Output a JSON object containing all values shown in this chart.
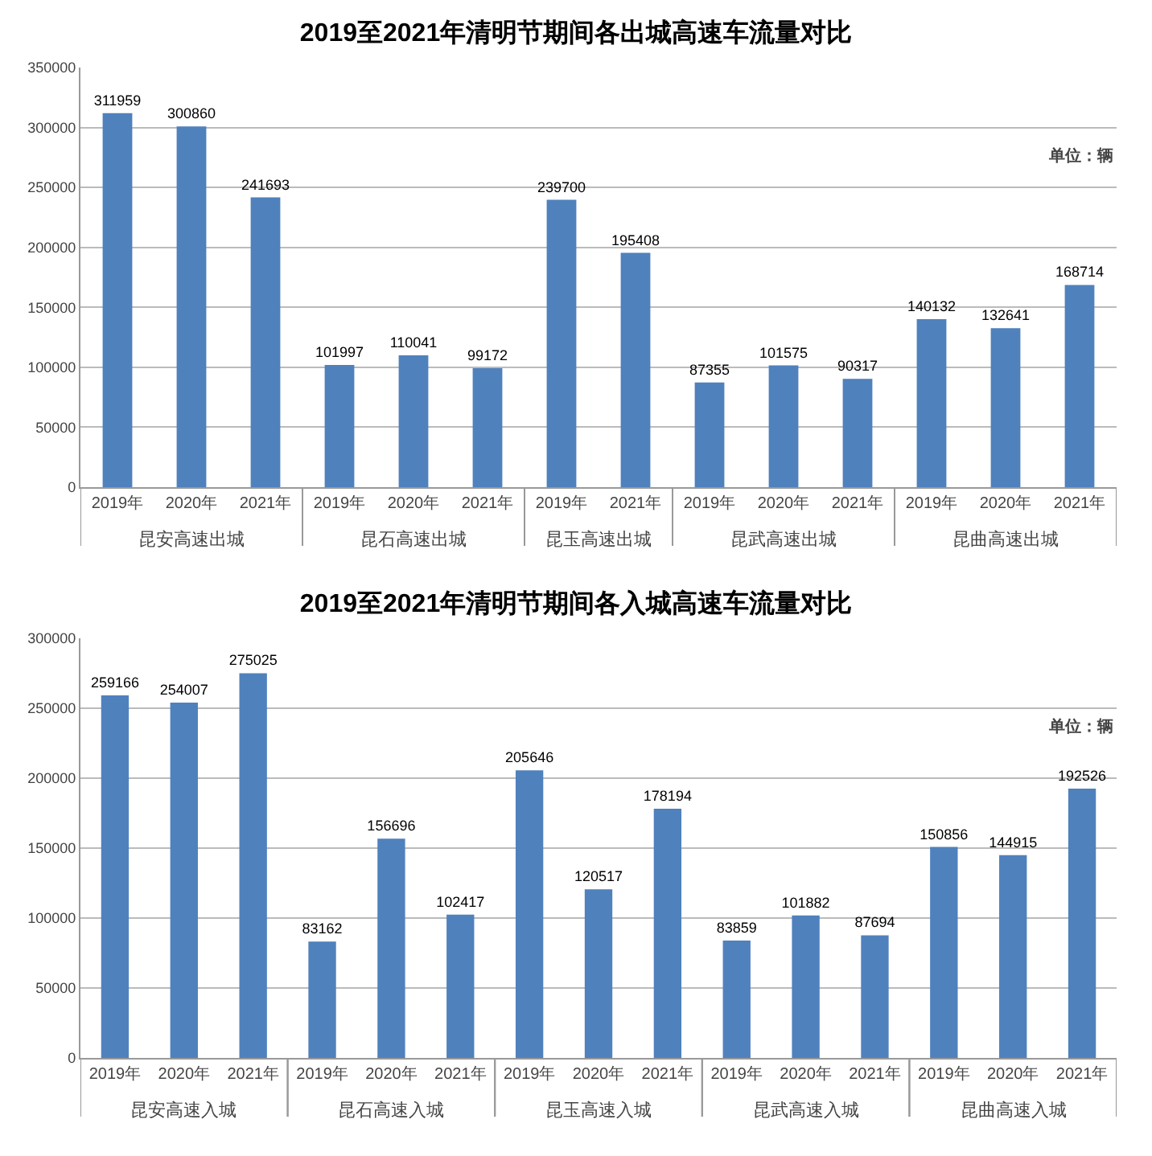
{
  "chart_data": [
    {
      "type": "bar",
      "title": "2019至2021年清明节期间各出城高速车流量对比",
      "annotations": [
        "单位：辆"
      ],
      "categories": [
        "2019年",
        "2020年",
        "2021年",
        "2019年",
        "2020年",
        "2021年",
        "2019年",
        "2021年",
        "2019年",
        "2020年",
        "2021年",
        "2019年",
        "2020年",
        "2021年"
      ],
      "series": [
        {
          "name": "昆安高速出城",
          "color": "#4f81bd",
          "values": [
            311959,
            300860,
            241693,
            null,
            null,
            null,
            null,
            null,
            null,
            null,
            null,
            null,
            null,
            null
          ]
        },
        {
          "name": "昆石高速出城",
          "color": "#4f81bd",
          "values": [
            null,
            null,
            null,
            101997,
            110041,
            99172,
            null,
            null,
            null,
            null,
            null,
            null,
            null,
            null
          ]
        },
        {
          "name": "昆玉高速出城",
          "color": "#4f81bd",
          "values": [
            null,
            null,
            null,
            null,
            null,
            null,
            239700,
            195408,
            null,
            null,
            null,
            null,
            null,
            null
          ]
        },
        {
          "name": "昆武高速出城",
          "color": "#4f81bd",
          "values": [
            null,
            null,
            null,
            null,
            null,
            null,
            null,
            null,
            87355,
            101575,
            90317,
            null,
            null,
            null
          ]
        },
        {
          "name": "昆曲高速出城",
          "color": "#4f81bd",
          "values": [
            null,
            null,
            null,
            null,
            null,
            null,
            null,
            null,
            null,
            null,
            null,
            140132,
            132641,
            168714
          ]
        }
      ],
      "ylim": [
        0,
        350000
      ],
      "yticks": [
        0,
        50000,
        100000,
        150000,
        200000,
        250000,
        300000,
        350000
      ],
      "grid": "y",
      "data_labels": true
    },
    {
      "type": "bar",
      "title": "2019至2021年清明节期间各入城高速车流量对比",
      "annotations": [
        "单位：辆"
      ],
      "categories": [
        "2019年",
        "2020年",
        "2021年",
        "2019年",
        "2020年",
        "2021年",
        "2019年",
        "2020年",
        "2021年",
        "2019年",
        "2020年",
        "2021年",
        "2019年",
        "2020年",
        "2021年"
      ],
      "series": [
        {
          "name": "昆安高速入城",
          "color": "#4f81bd",
          "values": [
            259166,
            254007,
            275025,
            null,
            null,
            null,
            null,
            null,
            null,
            null,
            null,
            null,
            null,
            null,
            null
          ]
        },
        {
          "name": "昆石高速入城",
          "color": "#4f81bd",
          "values": [
            null,
            null,
            null,
            83162,
            156696,
            102417,
            null,
            null,
            null,
            null,
            null,
            null,
            null,
            null,
            null
          ]
        },
        {
          "name": "昆玉高速入城",
          "color": "#4f81bd",
          "values": [
            null,
            null,
            null,
            null,
            null,
            null,
            205646,
            120517,
            178194,
            null,
            null,
            null,
            null,
            null,
            null
          ]
        },
        {
          "name": "昆武高速入城",
          "color": "#4f81bd",
          "values": [
            null,
            null,
            null,
            null,
            null,
            null,
            null,
            null,
            null,
            83859,
            101882,
            87694,
            null,
            null,
            null
          ]
        },
        {
          "name": "昆曲高速入城",
          "color": "#4f81bd",
          "values": [
            null,
            null,
            null,
            null,
            null,
            null,
            null,
            null,
            null,
            null,
            null,
            null,
            150856,
            144915,
            192526
          ]
        }
      ],
      "ylim": [
        0,
        300000
      ],
      "yticks": [
        0,
        50000,
        100000,
        150000,
        200000,
        250000,
        300000
      ],
      "grid": "y",
      "data_labels": true
    }
  ]
}
